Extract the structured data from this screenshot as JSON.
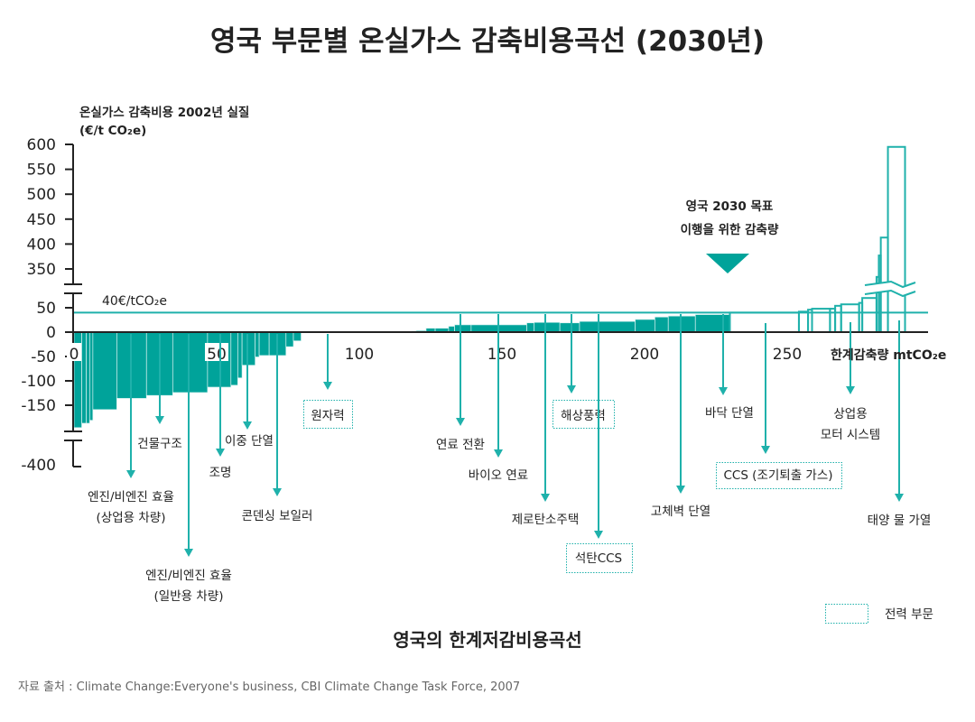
{
  "title": "영국 부문별 온실가스 감축비용곡선 (2030년)",
  "subtitle": "영국의 한계저감비용곡선",
  "source": "자료 출처 : Climate Change:Everyone's business, CBI Climate Change Task Force, 2007",
  "colors": {
    "fill": "#00a39a",
    "line": "#1fb1ab",
    "axis": "#222222"
  },
  "legend": {
    "label": "전력 부문",
    "style": "dotted teal outline box"
  },
  "chart_data": {
    "type": "bar",
    "subtype": "marginal abatement cost curve (variable-width bars)",
    "ylabel_line1": "온실가스 감축비용 2002년 실질",
    "ylabel_line2": "(€/t CO₂e)",
    "xlabel": "한계감축량 mtCO₂e",
    "x_ticks": [
      "0",
      "50",
      "100",
      "150",
      "200",
      "250"
    ],
    "y_ticks_upper": [
      "600",
      "550",
      "500",
      "450",
      "400",
      "350"
    ],
    "y_ticks_lower": [
      "50",
      "0",
      "-50",
      "-100",
      "-150",
      "-400"
    ],
    "y_axis_broken": true,
    "grid": false,
    "reference_line": {
      "value": 40,
      "label": "40€/tCO₂e"
    },
    "target": {
      "line1": "영국 2030 목표",
      "line2": "이행을 위한 감축량"
    },
    "bars": [
      {
        "x0": 0,
        "x1": 2.7,
        "cost": -196,
        "power": false
      },
      {
        "x0": 2.7,
        "x1": 4.3,
        "cost": -187,
        "power": false
      },
      {
        "x0": 4.3,
        "x1": 5.5,
        "cost": -187,
        "power": false
      },
      {
        "x0": 5.5,
        "x1": 6.6,
        "cost": -181,
        "power": false
      },
      {
        "x0": 6.6,
        "x1": 15,
        "cost": -159,
        "power": false
      },
      {
        "x0": 15,
        "x1": 25.4,
        "cost": -136,
        "power": false
      },
      {
        "x0": 25.4,
        "x1": 34.6,
        "cost": -130,
        "power": false
      },
      {
        "x0": 34.6,
        "x1": 46.8,
        "cost": -124,
        "power": false
      },
      {
        "x0": 46.8,
        "x1": 55,
        "cost": -113,
        "power": false
      },
      {
        "x0": 55,
        "x1": 57.4,
        "cost": -109,
        "power": false
      },
      {
        "x0": 57.4,
        "x1": 58.9,
        "cost": -94,
        "power": false
      },
      {
        "x0": 58.9,
        "x1": 63.5,
        "cost": -68,
        "power": false
      },
      {
        "x0": 63.5,
        "x1": 64.9,
        "cost": -51,
        "power": false
      },
      {
        "x0": 64.9,
        "x1": 68.4,
        "cost": -48,
        "power": false
      },
      {
        "x0": 68.4,
        "x1": 74.3,
        "cost": -48,
        "power": false
      },
      {
        "x0": 74.3,
        "x1": 76.9,
        "cost": -30,
        "power": false
      },
      {
        "x0": 76.9,
        "x1": 79.6,
        "cost": -18,
        "power": false
      },
      {
        "x0": 79.6,
        "x1": 118.4,
        "cost": -1,
        "power": false
      },
      {
        "x0": 118.4,
        "x1": 119.9,
        "cost": 2,
        "power": false
      },
      {
        "x0": 119.9,
        "x1": 123.4,
        "cost": 3,
        "power": false
      },
      {
        "x0": 123.4,
        "x1": 126.6,
        "cost": 8,
        "power": false
      },
      {
        "x0": 126.6,
        "x1": 131.3,
        "cost": 8,
        "power": false
      },
      {
        "x0": 131.3,
        "x1": 133.4,
        "cost": 12,
        "power": false
      },
      {
        "x0": 133.4,
        "x1": 139.2,
        "cost": 15,
        "power": false
      },
      {
        "x0": 139.2,
        "x1": 158.7,
        "cost": 15,
        "power": false
      },
      {
        "x0": 158.7,
        "x1": 161.3,
        "cost": 19,
        "power": false
      },
      {
        "x0": 161.3,
        "x1": 170.3,
        "cost": 20,
        "power": false
      },
      {
        "x0": 170.3,
        "x1": 177.2,
        "cost": 19,
        "power": false
      },
      {
        "x0": 177.2,
        "x1": 196.7,
        "cost": 22,
        "power": false
      },
      {
        "x0": 196.7,
        "x1": 203.6,
        "cost": 26,
        "power": false
      },
      {
        "x0": 203.6,
        "x1": 208.3,
        "cost": 31,
        "power": false
      },
      {
        "x0": 208.3,
        "x1": 217.8,
        "cost": 33,
        "power": false
      },
      {
        "x0": 217.8,
        "x1": 229.9,
        "cost": 36,
        "power": false
      },
      {
        "x0": 229.9,
        "x1": 254.1,
        "cost": 40,
        "power": true
      },
      {
        "x0": 254.1,
        "x1": 257.3,
        "cost": 42,
        "power": true
      },
      {
        "x0": 257.3,
        "x1": 258.7,
        "cost": 46,
        "power": true
      },
      {
        "x0": 258.7,
        "x1": 265,
        "cost": 48,
        "power": true
      },
      {
        "x0": 265,
        "x1": 266.8,
        "cost": 48,
        "power": true
      },
      {
        "x0": 266.8,
        "x1": 268.9,
        "cost": 54,
        "power": true
      },
      {
        "x0": 268.9,
        "x1": 275.2,
        "cost": 57,
        "power": true
      },
      {
        "x0": 275.2,
        "x1": 276.3,
        "cost": 60,
        "power": true
      },
      {
        "x0": 276.3,
        "x1": 281.3,
        "cost": 70,
        "power": true
      },
      {
        "x0": 281.3,
        "x1": 282.1,
        "cost": 334,
        "power": true
      },
      {
        "x0": 282.1,
        "x1": 282.8,
        "cost": 377,
        "power": true
      },
      {
        "x0": 282.8,
        "x1": 285.3,
        "cost": 413,
        "power": true
      },
      {
        "x0": 285.3,
        "x1": 291.3,
        "cost": 595,
        "power": true
      }
    ],
    "annotations": [
      {
        "label": "원자력",
        "power": true
      },
      {
        "label": "건물구조",
        "power": false
      },
      {
        "label": "엔진/비엔진 효율",
        "label2": "(상업용 차량)",
        "power": false
      },
      {
        "label": "엔진/비엔진 효율",
        "label2": "(일반용 차량)",
        "power": false
      },
      {
        "label": "조명",
        "power": false
      },
      {
        "label": "이중 단열",
        "power": false
      },
      {
        "label": "콘덴싱 보일러",
        "power": false
      },
      {
        "label": "연료 전환",
        "power": false
      },
      {
        "label": "바이오 연료",
        "power": false
      },
      {
        "label": "제로탄소주택",
        "power": false
      },
      {
        "label": "해상풍력",
        "power": true
      },
      {
        "label": "석탄CCS",
        "power": true
      },
      {
        "label": "고체벽 단열",
        "power": false
      },
      {
        "label": "바닥 단열",
        "power": false
      },
      {
        "label": "CCS (조기퇴출 가스)",
        "power": true
      },
      {
        "label": "상업용",
        "label2": "모터 시스템",
        "power": false
      },
      {
        "label": "태양 물 가열",
        "power": false
      }
    ]
  }
}
